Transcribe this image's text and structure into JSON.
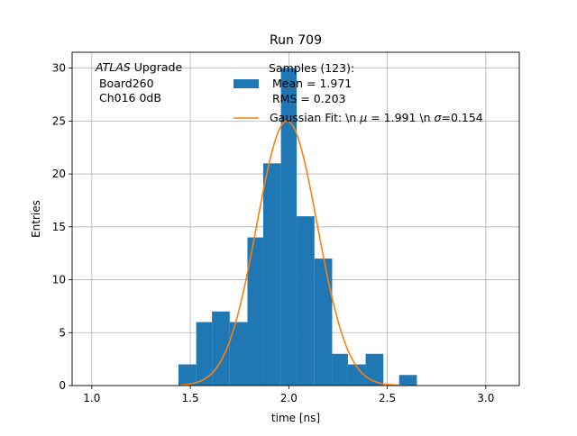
{
  "chart_data": {
    "type": "bar",
    "title": "Run 709",
    "xlabel": "time [ns]",
    "ylabel": "Entries",
    "xlim": [
      0.9,
      3.17
    ],
    "ylim": [
      0,
      31.5
    ],
    "xticks": [
      1.0,
      1.5,
      2.0,
      2.5,
      3.0
    ],
    "xtick_labels": [
      "1.0",
      "1.5",
      "2.0",
      "2.5",
      "3.0"
    ],
    "yticks": [
      0,
      5,
      10,
      15,
      20,
      25,
      30
    ],
    "ytick_labels": [
      "0",
      "5",
      "10",
      "15",
      "20",
      "25",
      "30"
    ],
    "grid": true,
    "histogram": {
      "bin_edges": [
        1.44,
        1.53,
        1.61,
        1.7,
        1.79,
        1.87,
        1.96,
        2.04,
        2.13,
        2.22,
        2.3,
        2.39,
        2.48,
        2.56,
        2.65
      ],
      "counts": [
        2,
        6,
        7,
        6,
        14,
        21,
        30,
        16,
        12,
        3,
        2,
        3,
        0,
        1
      ],
      "color": "#1f77b4"
    },
    "gaussian_fit": {
      "mu": 1.991,
      "sigma": 0.154,
      "amplitude": 25,
      "x_range": [
        1.45,
        2.6
      ],
      "color": "#ff7f0e"
    },
    "annotation": {
      "line1_italic": "ATLAS",
      "line1_rest": " Upgrade",
      "line2": " Board260",
      "line3": " Ch016 0dB"
    },
    "legend": {
      "placement": "top-right",
      "hist_label_lines": [
        "Samples (123):",
        " Mean = 1.971",
        " RMS = 0.203"
      ],
      "fit_label_prefix": "Gaussian Fit: \\n ",
      "fit_label_mu_symbol": "μ",
      "fit_label_mid": " = 1.991 \\n ",
      "fit_label_sigma_symbol": "σ",
      "fit_label_suffix": "=0.154"
    }
  }
}
